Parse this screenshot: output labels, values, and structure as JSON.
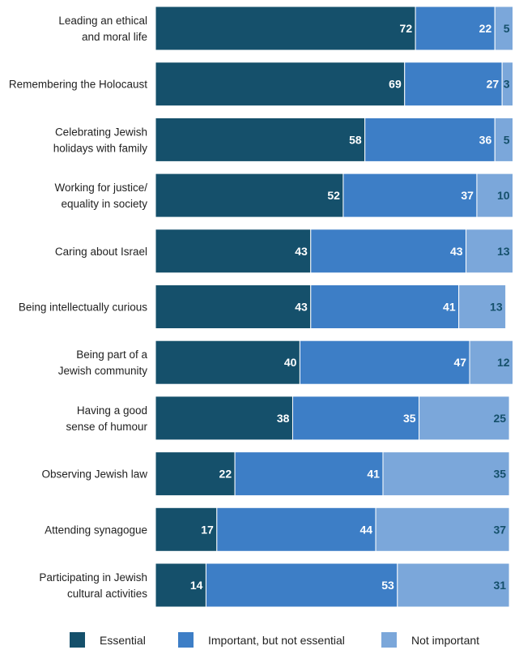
{
  "chart_data": {
    "type": "bar",
    "orientation": "horizontal",
    "stacked": true,
    "categories": [
      [
        "Leading an ethical",
        "and moral life"
      ],
      [
        "Remembering the Holocaust"
      ],
      [
        "Celebrating Jewish",
        "holidays with family"
      ],
      [
        "Working for justice/",
        "equality in society"
      ],
      [
        "Caring about Israel"
      ],
      [
        "Being intellectually curious"
      ],
      [
        "Being part of a",
        "Jewish community"
      ],
      [
        "Having a good",
        "sense of humour"
      ],
      [
        "Observing Jewish law"
      ],
      [
        "Attending synagogue"
      ],
      [
        "Participating in Jewish",
        "cultural activities"
      ]
    ],
    "series": [
      {
        "name": "Essential",
        "color": "#15506b",
        "label_color": "#ffffff",
        "values": [
          72,
          69,
          58,
          52,
          43,
          43,
          40,
          38,
          22,
          17,
          14
        ]
      },
      {
        "name": "Important, but not essential",
        "color": "#3d7ec6",
        "label_color": "#ffffff",
        "values": [
          22,
          27,
          36,
          37,
          43,
          41,
          47,
          35,
          41,
          44,
          53
        ]
      },
      {
        "name": "Not important",
        "color": "#7ba7da",
        "label_color": "#15506b",
        "values": [
          5,
          3,
          5,
          10,
          13,
          13,
          12,
          25,
          35,
          37,
          31
        ]
      }
    ],
    "xlim": [
      0,
      100
    ],
    "grid": false,
    "legend_position": "bottom"
  }
}
